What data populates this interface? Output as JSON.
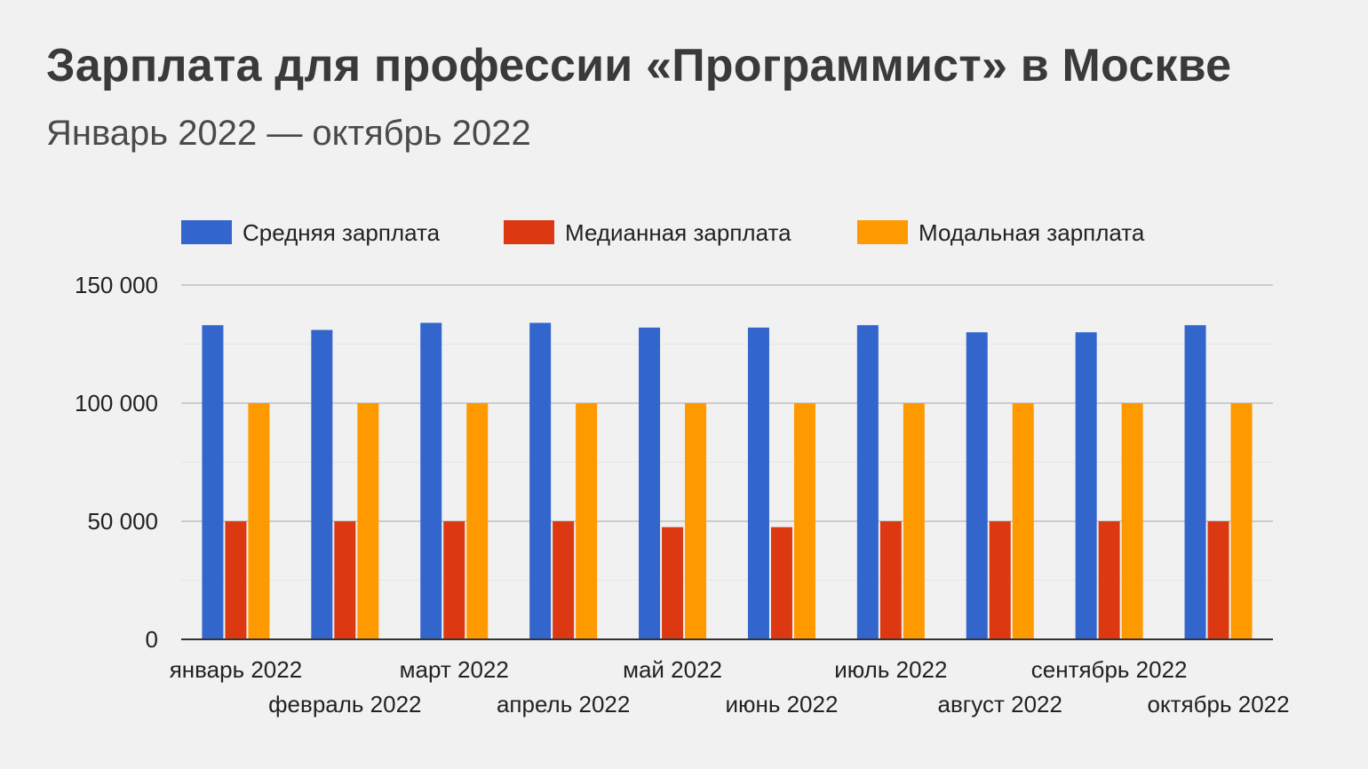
{
  "header": {
    "title": "Зарплата для профессии «Программист» в Москве",
    "subtitle": "Январь 2022 — октябрь 2022"
  },
  "colors": {
    "series": [
      "#3366cc",
      "#dc3912",
      "#ff9900"
    ],
    "grid": "#cccccc",
    "minor_grid": "#e6e6e6",
    "axis": "#333333",
    "background": "#f1f1f1"
  },
  "chart_data": {
    "type": "bar",
    "title": "Зарплата для профессии «Программист» в Москве",
    "subtitle": "Январь 2022 — октябрь 2022",
    "xlabel": "",
    "ylabel": "",
    "ylim": [
      0,
      150000
    ],
    "yticks": [
      0,
      50000,
      100000,
      150000
    ],
    "ytick_labels": [
      "0",
      "50 000",
      "100 000",
      "150 000"
    ],
    "grid": true,
    "legend_position": "top",
    "categories": [
      "январь 2022",
      "февраль 2022",
      "март 2022",
      "апрель 2022",
      "май 2022",
      "июнь 2022",
      "июль 2022",
      "август 2022",
      "сентябрь 2022",
      "октябрь 2022"
    ],
    "series": [
      {
        "name": "Средняя зарплата",
        "values": [
          133000,
          131000,
          134000,
          134000,
          132000,
          132000,
          133000,
          130000,
          130000,
          133000
        ]
      },
      {
        "name": "Медианная зарплата",
        "values": [
          50000,
          50000,
          50000,
          50000,
          47500,
          47500,
          50000,
          50000,
          50000,
          50000
        ]
      },
      {
        "name": "Модальная зарплата",
        "values": [
          100000,
          100000,
          100000,
          100000,
          100000,
          100000,
          100000,
          100000,
          100000,
          100000
        ]
      }
    ]
  }
}
